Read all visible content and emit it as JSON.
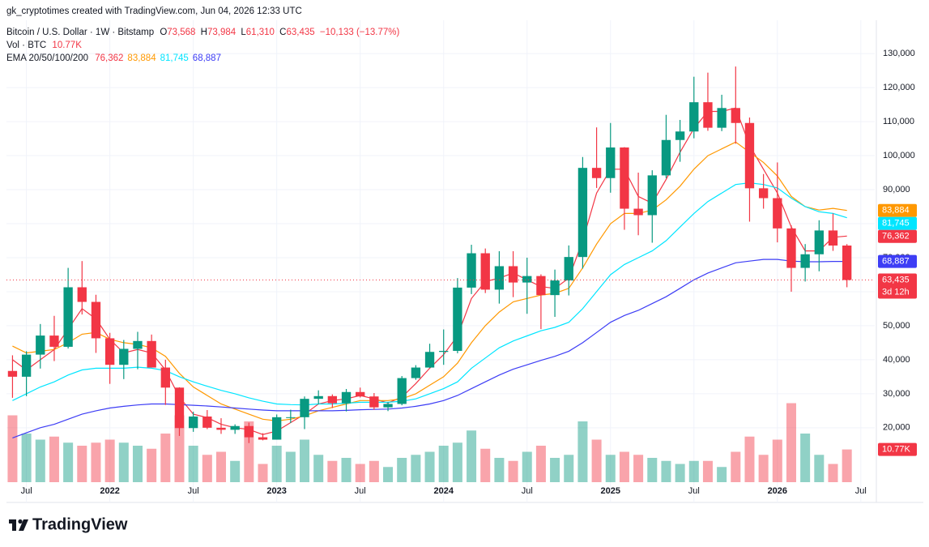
{
  "chart_data": {
    "type": "candlestick",
    "attribution": "gk_cryptotimes created with TradingView.com, Jun 04, 2026 12:33 UTC",
    "header": {
      "symbol": "Bitcoin / U.S. Dollar · 1W · Bitstamp",
      "ohlc": [
        {
          "key": "O",
          "value": "73,568"
        },
        {
          "key": "H",
          "value": "73,984"
        },
        {
          "key": "L",
          "value": "61,310"
        },
        {
          "key": "C",
          "value": "63,435"
        }
      ],
      "change": "−10,133 (−13.77%)",
      "volume_title": "Vol · BTC",
      "ema_title": "EMA 20/50/100/200"
    },
    "countdown": "3d 12h",
    "volume_label": "10.77K",
    "footer": {
      "brand": "TradingView"
    },
    "x": [
      "2021-06",
      "2021-07",
      "2021-08",
      "2021-09",
      "2021-10",
      "2021-11",
      "2021-12",
      "2022-01",
      "2022-02",
      "2022-03",
      "2022-04",
      "2022-05",
      "2022-06",
      "2022-07",
      "2022-08",
      "2022-09",
      "2022-10",
      "2022-11",
      "2022-12",
      "2023-01",
      "2023-02",
      "2023-03",
      "2023-04",
      "2023-05",
      "2023-06",
      "2023-07",
      "2023-08",
      "2023-09",
      "2023-10",
      "2023-11",
      "2023-12",
      "2024-01",
      "2024-02",
      "2024-03",
      "2024-04",
      "2024-05",
      "2024-06",
      "2024-07",
      "2024-08",
      "2024-09",
      "2024-10",
      "2024-11",
      "2024-12",
      "2025-01",
      "2025-02",
      "2025-03",
      "2025-04",
      "2025-05",
      "2025-06",
      "2025-07",
      "2025-08",
      "2025-09",
      "2025-10",
      "2025-11",
      "2025-12",
      "2026-01",
      "2026-02",
      "2026-03",
      "2026-04",
      "2026-05",
      "2026-06"
    ],
    "open": [
      36700,
      35000,
      41500,
      47100,
      43800,
      61300,
      57000,
      46300,
      38500,
      43200,
      45500,
      37700,
      31800,
      19900,
      23300,
      20000,
      19400,
      20500,
      17200,
      16500,
      23100,
      23100,
      28500,
      29300,
      27200,
      30500,
      29200,
      26000,
      27000,
      34600,
      37700,
      42300,
      42600,
      61200,
      71300,
      60600,
      67500,
      62700,
      64600,
      59000,
      63300,
      70200,
      96400,
      93400,
      102400,
      84400,
      82500,
      94200,
      104600,
      107100,
      115700,
      108200,
      114000,
      109600,
      90400,
      87500,
      78600,
      67000,
      71000,
      78000,
      73568
    ],
    "high": [
      41300,
      42500,
      50500,
      52900,
      67000,
      69000,
      59100,
      47900,
      45800,
      48200,
      47400,
      40000,
      31900,
      24700,
      25200,
      22800,
      21000,
      21500,
      18400,
      23900,
      25300,
      29200,
      31000,
      29800,
      31400,
      31800,
      30200,
      27500,
      35200,
      38400,
      44700,
      48900,
      64000,
      73800,
      72700,
      71900,
      71900,
      70000,
      65100,
      66500,
      73600,
      99600,
      108300,
      109600,
      102500,
      95000,
      95700,
      112000,
      110500,
      123200,
      124400,
      117900,
      126200,
      111200,
      94600,
      98000,
      79500,
      74000,
      81000,
      83000,
      73984
    ],
    "low": [
      28800,
      29300,
      37400,
      39600,
      43300,
      53300,
      42000,
      32900,
      34300,
      37200,
      37700,
      26700,
      17600,
      18800,
      19600,
      18200,
      18200,
      15500,
      16300,
      16500,
      21400,
      19600,
      26900,
      25800,
      24800,
      28900,
      25300,
      24900,
      26600,
      34100,
      37600,
      38500,
      41900,
      59300,
      59600,
      56500,
      58400,
      53500,
      49000,
      52600,
      58900,
      66800,
      90500,
      89100,
      78200,
      76600,
      74400,
      93400,
      98200,
      105100,
      107300,
      107200,
      103500,
      80600,
      84400,
      74500,
      60000,
      63000,
      66000,
      72000,
      61310
    ],
    "close": [
      35000,
      41500,
      47100,
      43800,
      61300,
      57000,
      46300,
      38500,
      43200,
      45500,
      37700,
      31800,
      19900,
      23300,
      20000,
      19400,
      20500,
      17200,
      16500,
      23100,
      23100,
      28500,
      29300,
      27200,
      30500,
      29200,
      26000,
      27000,
      34600,
      37700,
      42300,
      42600,
      61200,
      71300,
      60600,
      67500,
      62700,
      64600,
      59000,
      63300,
      70200,
      96400,
      93400,
      102400,
      84400,
      82500,
      94200,
      104600,
      107100,
      115700,
      108200,
      114000,
      109600,
      90400,
      87500,
      78600,
      67000,
      71000,
      78000,
      73568,
      63435
    ],
    "volume": [
      22000,
      16000,
      14000,
      15000,
      13000,
      12000,
      13000,
      14000,
      13000,
      12000,
      11000,
      16000,
      22000,
      12000,
      9000,
      10000,
      7000,
      20000,
      6000,
      12000,
      10000,
      14000,
      9000,
      7000,
      8000,
      6000,
      7000,
      5000,
      8000,
      9000,
      10000,
      12000,
      13000,
      17000,
      11000,
      8000,
      7000,
      10000,
      12000,
      8000,
      9000,
      20000,
      14000,
      9000,
      10000,
      9000,
      8000,
      7000,
      6000,
      7000,
      7000,
      5000,
      10000,
      15000,
      9000,
      14000,
      26000,
      16000,
      9000,
      6000,
      10770
    ],
    "ema": [
      {
        "color": "#f23645",
        "last_label": "76,362",
        "values": [
          40000,
          37000,
          40000,
          43000,
          49000,
          55000,
          52000,
          46000,
          42000,
          43000,
          42000,
          37000,
          29000,
          24000,
          23000,
          21000,
          20000,
          19500,
          18000,
          19000,
          21500,
          24000,
          27000,
          28000,
          28500,
          29500,
          28500,
          27300,
          29000,
          33000,
          37500,
          41500,
          47000,
          58000,
          63000,
          64000,
          65500,
          63500,
          61500,
          61000,
          64000,
          75000,
          89000,
          96000,
          96000,
          88000,
          86000,
          93000,
          101000,
          108000,
          113000,
          113000,
          114000,
          103000,
          96000,
          89000,
          79000,
          72000,
          72000,
          76000,
          76362
        ]
      },
      {
        "color": "#ff9800",
        "last_label": "83,884",
        "values": [
          44000,
          42000,
          42500,
          43000,
          45000,
          47500,
          48000,
          46000,
          45000,
          44500,
          43500,
          41000,
          36000,
          32000,
          29500,
          27000,
          25500,
          24000,
          22500,
          22000,
          22500,
          23500,
          25000,
          26000,
          27000,
          28000,
          28000,
          28000,
          28500,
          30000,
          32500,
          35000,
          39000,
          45000,
          50000,
          54000,
          57000,
          58000,
          59000,
          59500,
          61000,
          67000,
          74000,
          80000,
          83000,
          83000,
          84000,
          87000,
          91000,
          96000,
          100000,
          102000,
          104000,
          101000,
          98000,
          94000,
          88000,
          85000,
          84000,
          84500,
          83884
        ]
      },
      {
        "color": "#00e5ff",
        "last_label": "81,745",
        "values": [
          28000,
          30000,
          32000,
          33500,
          35500,
          37000,
          37500,
          37500,
          37500,
          37800,
          37500,
          36800,
          35000,
          33500,
          32200,
          31000,
          30000,
          28800,
          27800,
          27000,
          26800,
          26700,
          27000,
          27000,
          27200,
          27500,
          27500,
          27500,
          27800,
          28500,
          30000,
          31500,
          33500,
          37500,
          40500,
          43500,
          45500,
          47000,
          48500,
          49500,
          51000,
          55000,
          60000,
          65000,
          68000,
          70000,
          72000,
          75000,
          79000,
          83000,
          86500,
          89000,
          91500,
          92000,
          91500,
          90500,
          87500,
          85000,
          83500,
          83000,
          81745
        ]
      },
      {
        "color": "#3d3df5",
        "last_label": "68,887",
        "values": [
          17000,
          18500,
          20000,
          21000,
          22500,
          24000,
          25000,
          25800,
          26300,
          26700,
          27000,
          27000,
          26800,
          26600,
          26400,
          26100,
          25800,
          25500,
          25200,
          25000,
          25000,
          25000,
          25000,
          25000,
          25100,
          25300,
          25400,
          25500,
          25800,
          26300,
          27000,
          28000,
          29500,
          31500,
          33500,
          35500,
          37200,
          38500,
          39800,
          41000,
          42500,
          45000,
          48000,
          51000,
          53000,
          54500,
          56500,
          58500,
          61000,
          63500,
          65500,
          67000,
          68500,
          69000,
          69500,
          69500,
          69000,
          68800,
          68800,
          68900,
          68887
        ]
      }
    ],
    "up_color": "#089981",
    "down_color": "#f23645",
    "xlim": [
      "2021-05-18",
      "2026-08-01"
    ],
    "xticks": [
      {
        "value": "2021-07",
        "label": "Jul"
      },
      {
        "value": "2022-01",
        "label": "2022"
      },
      {
        "value": "2022-07",
        "label": "Jul"
      },
      {
        "value": "2023-01",
        "label": "2023"
      },
      {
        "value": "2023-07",
        "label": "Jul"
      },
      {
        "value": "2024-01",
        "label": "2024"
      },
      {
        "value": "2024-07",
        "label": "Jul"
      },
      {
        "value": "2025-01",
        "label": "2025"
      },
      {
        "value": "2025-07",
        "label": "Jul"
      },
      {
        "value": "2026-01",
        "label": "2026"
      },
      {
        "value": "2026-07",
        "label": "Jul"
      }
    ],
    "ylim": [
      4000,
      139800
    ],
    "yticks": [
      {
        "value": 20000,
        "label": "20,000"
      },
      {
        "value": 30000,
        "label": "30,000"
      },
      {
        "value": 40000,
        "label": "40,000"
      },
      {
        "value": 50000,
        "label": "50,000"
      },
      {
        "value": 60000,
        "label": "60,000"
      },
      {
        "value": 70000,
        "label": "70,000"
      },
      {
        "value": 80000,
        "label": "80,000"
      },
      {
        "value": 90000,
        "label": "90,000"
      },
      {
        "value": 100000,
        "label": "100,000"
      },
      {
        "value": 110000,
        "label": "110,000"
      },
      {
        "value": 120000,
        "label": "120,000"
      },
      {
        "value": 130000,
        "label": "130,000"
      }
    ],
    "vlim": [
      0,
      60000
    ],
    "grid": true
  }
}
